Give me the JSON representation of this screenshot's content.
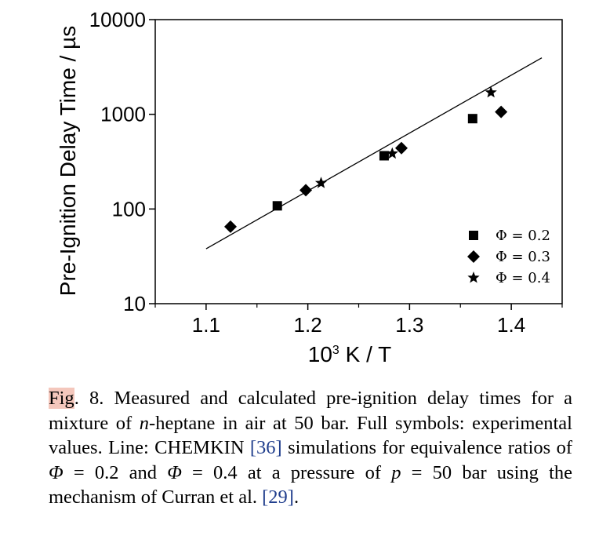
{
  "chart_data": {
    "type": "scatter",
    "xlabel": "10³ K / T",
    "ylabel": "Pre-Ignition Delay Time / µs",
    "xlim": [
      1.05,
      1.45
    ],
    "ylim": [
      10,
      10000
    ],
    "yscale": "log",
    "x_ticks": [
      "1.1",
      "1.2",
      "1.3",
      "1.4"
    ],
    "y_ticks": [
      "10",
      "100",
      "1000",
      "10000"
    ],
    "legend_position": "bottom-right",
    "series": [
      {
        "name": "Φ = 0.2",
        "marker": "square",
        "points": [
          [
            1.17,
            108
          ],
          [
            1.275,
            365
          ],
          [
            1.362,
            900
          ]
        ]
      },
      {
        "name": "Φ = 0.3",
        "marker": "diamond",
        "points": [
          [
            1.124,
            65
          ],
          [
            1.198,
            158
          ],
          [
            1.292,
            440
          ],
          [
            1.39,
            1060
          ]
        ]
      },
      {
        "name": "Φ = 0.4",
        "marker": "star",
        "points": [
          [
            1.213,
            188
          ],
          [
            1.283,
            385
          ],
          [
            1.38,
            1700
          ]
        ]
      }
    ],
    "line": {
      "name": "CHEMKIN",
      "points": [
        [
          1.1,
          38
        ],
        [
          1.43,
          3950
        ]
      ]
    }
  },
  "caption": {
    "fig_word": "Fig",
    "number_text": ". 8.",
    "t1": " Measured and calculated pre-ignition delay times for a mixture of ",
    "n": "n",
    "t2": "-heptane in air at 50 bar. Full symbols: experimental values. Line: CHEMKIN ",
    "ref1": "[36]",
    "t3": " simulations for equivalence ratios of ",
    "phi1": "Φ",
    "t4": " = 0.2 and ",
    "phi2": "Φ",
    "t5": " = 0.4 at a pressure of ",
    "p": "p",
    "t6": " = 50 bar using the mechanism of Curran et al. ",
    "ref2": "[29]",
    "t7": "."
  }
}
